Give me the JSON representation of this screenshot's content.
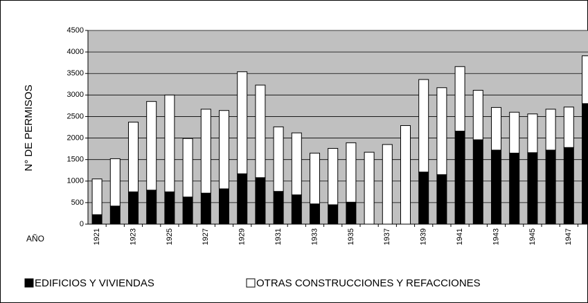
{
  "chart_data": {
    "type": "bar",
    "stacked": true,
    "ylabel": "N° DE PERMISOS",
    "xlabel": "AÑO",
    "categories": [
      "1921",
      null,
      "1923",
      null,
      "1925",
      null,
      "1927",
      null,
      "1929",
      null,
      "1931",
      null,
      "1933",
      null,
      "1935",
      null,
      "1937",
      null,
      "1939",
      null,
      "1941",
      null,
      "1943",
      null,
      "1945",
      null,
      "1947",
      null
    ],
    "series": [
      {
        "name": "EDIFICIOS Y VIVIENDAS",
        "color": "#000000",
        "values": [
          220,
          420,
          750,
          790,
          750,
          630,
          720,
          820,
          1170,
          1080,
          760,
          680,
          470,
          450,
          510,
          0,
          0,
          0,
          1210,
          1150,
          2160,
          1960,
          1720,
          1650,
          1660,
          1720,
          1780,
          2800
        ]
      },
      {
        "name": "OTRAS CONSTRUCCIONES Y REFACCIONES",
        "color": "#ffffff",
        "values": [
          830,
          1100,
          1620,
          2060,
          2250,
          1360,
          1950,
          1820,
          2370,
          2150,
          1500,
          1440,
          1180,
          1310,
          1380,
          1670,
          1850,
          2290,
          2150,
          2020,
          1500,
          1150,
          990,
          950,
          900,
          950,
          940,
          1110
        ]
      }
    ],
    "ylim": [
      0,
      4500
    ],
    "yticks": [
      0,
      500,
      1000,
      1500,
      2000,
      2500,
      3000,
      3500,
      4000,
      4500
    ],
    "grid": true,
    "plot_background": "#c0c0c0",
    "legend": "bottom"
  }
}
